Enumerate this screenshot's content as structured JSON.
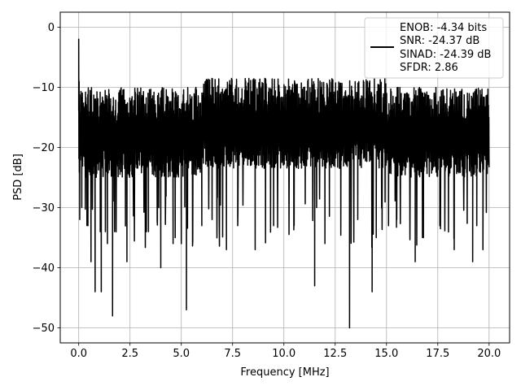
{
  "chart_data": {
    "type": "line",
    "xlabel": "Frequency [MHz]",
    "ylabel": "PSD [dB]",
    "xlim": [
      -0.9,
      21.0
    ],
    "ylim": [
      -52.5,
      2.5
    ],
    "xticks": [
      0.0,
      2.5,
      5.0,
      7.5,
      10.0,
      12.5,
      15.0,
      17.5,
      20.0
    ],
    "xtick_labels": [
      "0.0",
      "2.5",
      "5.0",
      "7.5",
      "10.0",
      "12.5",
      "15.0",
      "17.5",
      "20.0"
    ],
    "yticks": [
      0,
      -10,
      -20,
      -30,
      -40,
      -50
    ],
    "ytick_labels": [
      "0",
      "−10",
      "−20",
      "−30",
      "−40",
      "−50"
    ],
    "grid": true,
    "legend_position": "top-right",
    "legend_lines": [
      "ENOB: -4.34 bits",
      "SNR: -24.37 dB",
      "SINAD: -24.39 dB",
      "SFDR: 2.86"
    ],
    "series": [
      {
        "color": "#000000",
        "x_range": [
          0.0,
          20.0
        ],
        "envelope_upper_db": -10,
        "envelope_lower_db": -25,
        "points": [
          [
            0.0,
            -2
          ],
          [
            0.02,
            -9
          ],
          [
            0.05,
            -32
          ],
          [
            0.1,
            -15
          ],
          [
            0.15,
            -30
          ],
          [
            0.2,
            -13
          ],
          [
            0.45,
            -33
          ],
          [
            0.6,
            -39
          ],
          [
            0.8,
            -44
          ],
          [
            1.05,
            -34
          ],
          [
            1.1,
            -44
          ],
          [
            1.3,
            -34
          ],
          [
            1.4,
            -36
          ],
          [
            1.65,
            -48
          ],
          [
            1.75,
            -34
          ],
          [
            2.35,
            -39
          ],
          [
            3.3,
            -34
          ],
          [
            3.4,
            -34
          ],
          [
            4.0,
            -40
          ],
          [
            4.6,
            -36
          ],
          [
            5.25,
            -47
          ],
          [
            5.0,
            -36
          ],
          [
            6.0,
            -33
          ],
          [
            6.5,
            -32
          ],
          [
            7.2,
            -37
          ],
          [
            7.75,
            -33
          ],
          [
            8.6,
            -37
          ],
          [
            9.5,
            -33
          ],
          [
            10.5,
            -33
          ],
          [
            11.5,
            -43
          ],
          [
            12.0,
            -36
          ],
          [
            13.2,
            -50
          ],
          [
            13.6,
            -32
          ],
          [
            14.3,
            -44
          ],
          [
            14.5,
            -35
          ],
          [
            15.1,
            -33
          ],
          [
            15.5,
            -32
          ],
          [
            16.4,
            -39
          ],
          [
            16.8,
            -35
          ],
          [
            17.6,
            -33
          ],
          [
            18.3,
            -37
          ],
          [
            19.2,
            -39
          ],
          [
            19.4,
            -33
          ],
          [
            19.7,
            -37
          ],
          [
            20.0,
            -22
          ]
        ]
      }
    ]
  }
}
